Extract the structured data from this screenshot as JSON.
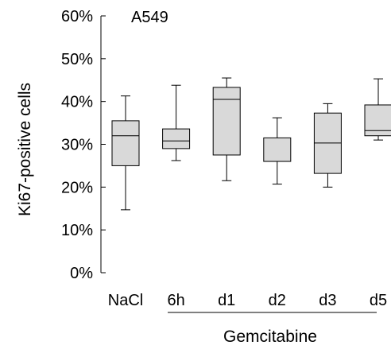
{
  "chart_data": {
    "type": "box",
    "annotation": "A549",
    "ylabel": "Ki67-positive cells",
    "xlabel": "",
    "group_label": "Gemcitabine",
    "group_members": [
      "6h",
      "d1",
      "d2",
      "d3",
      "d5"
    ],
    "ylim": [
      0,
      60
    ],
    "y_ticks": [
      0,
      10,
      20,
      30,
      40,
      50,
      60
    ],
    "y_tick_labels": [
      "0%",
      "10%",
      "20%",
      "30%",
      "40%",
      "50%",
      "60%"
    ],
    "categories": [
      "NaCl",
      "6h",
      "d1",
      "d2",
      "d3",
      "d5"
    ],
    "boxes": [
      {
        "min": 14.7,
        "q1": 25.0,
        "median": 32.0,
        "q3": 35.5,
        "max": 41.3
      },
      {
        "min": 26.2,
        "q1": 29.0,
        "median": 30.8,
        "q3": 33.6,
        "max": 43.8
      },
      {
        "min": 21.5,
        "q1": 27.5,
        "median": 40.5,
        "q3": 43.3,
        "max": 45.5
      },
      {
        "min": 20.7,
        "q1": 26.0,
        "median": 26.0,
        "q3": 31.5,
        "max": 36.2
      },
      {
        "min": 20.0,
        "q1": 23.2,
        "median": 30.3,
        "q3": 37.3,
        "max": 39.5
      },
      {
        "min": 31.0,
        "q1": 32.0,
        "median": 33.2,
        "q3": 39.2,
        "max": 45.3
      }
    ],
    "colors": {
      "box_fill": "#d9d9d9",
      "stroke": "#000000"
    },
    "grid": false,
    "legend": "none"
  }
}
